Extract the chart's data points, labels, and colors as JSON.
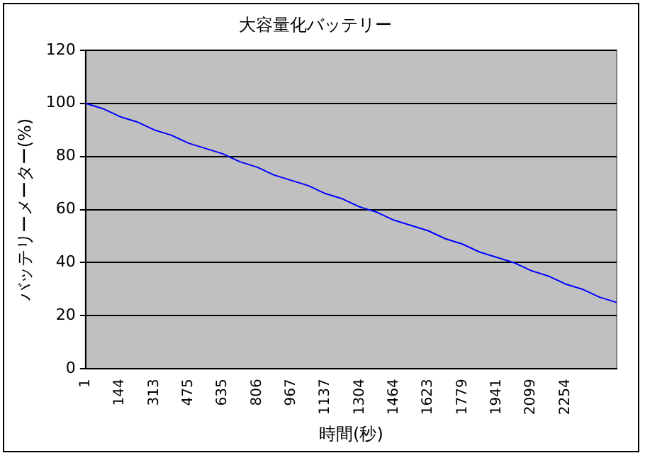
{
  "chart_data": {
    "type": "line",
    "title": "大容量化バッテリー",
    "xlabel": "時間(秒)",
    "ylabel": "バッテリーメーター(%)",
    "categories": [
      "1",
      null,
      "144",
      null,
      "313",
      null,
      "475",
      null,
      "635",
      null,
      "806",
      null,
      "967",
      null,
      "1137",
      null,
      "1304",
      null,
      "1464",
      null,
      "1623",
      null,
      "1779",
      null,
      "1941",
      null,
      "2099",
      null,
      "2254",
      null,
      null,
      null
    ],
    "series": [
      {
        "color": "#0000ff",
        "values": [
          100,
          98,
          95,
          93,
          90,
          88,
          85,
          83,
          81,
          78,
          76,
          73,
          71,
          69,
          66,
          64,
          61,
          59,
          56,
          54,
          52,
          49,
          47,
          44,
          42,
          40,
          37,
          35,
          32,
          30,
          27,
          25
        ]
      }
    ],
    "ylim": [
      0,
      120
    ],
    "yticks": [
      0,
      20,
      40,
      60,
      80,
      100,
      120
    ],
    "grid": "y",
    "legend": false,
    "marker": "none",
    "line_style": "solid"
  }
}
